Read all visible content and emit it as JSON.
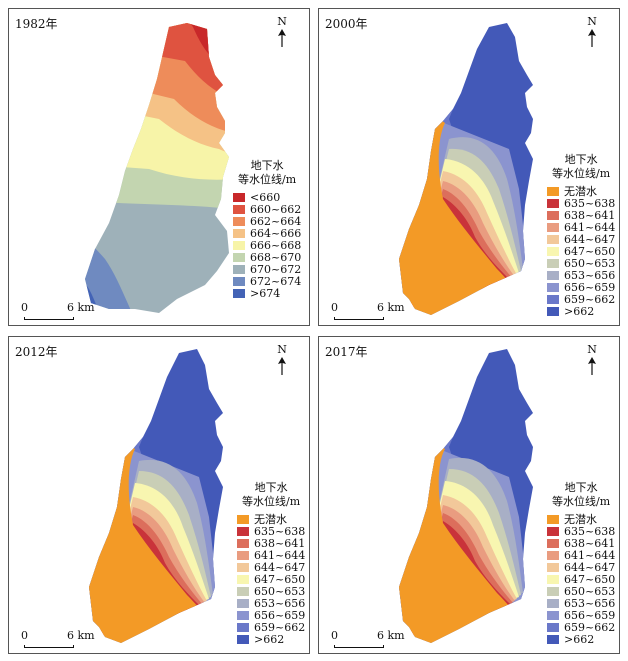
{
  "common": {
    "north_label": "N",
    "scale_zero": "0",
    "scale_dist": "6 km",
    "legend_title_1": "地下水",
    "legend_title_2": "等水位线/m"
  },
  "panels": [
    {
      "year": "1982年",
      "legend": [
        {
          "label": "<660",
          "color": "#c8282a"
        },
        {
          "label": "660~662",
          "color": "#df5340"
        },
        {
          "label": "662~664",
          "color": "#ee8c5a"
        },
        {
          "label": "664~666",
          "color": "#f5c286"
        },
        {
          "label": "666~668",
          "color": "#f7f4a8"
        },
        {
          "label": "668~670",
          "color": "#c3d5b0"
        },
        {
          "label": "670~672",
          "color": "#9eb1b9"
        },
        {
          "label": "672~674",
          "color": "#6f8ac0"
        },
        {
          "label": ">674",
          "color": "#4363b6"
        }
      ]
    },
    {
      "year": "2000年",
      "legend": [
        {
          "label": "无潜水",
          "color": "#f39a26"
        },
        {
          "label": "635~638",
          "color": "#c9333a"
        },
        {
          "label": "638~641",
          "color": "#dc6e5c"
        },
        {
          "label": "641~644",
          "color": "#e99c80"
        },
        {
          "label": "644~647",
          "color": "#f2c89a"
        },
        {
          "label": "647~650",
          "color": "#f8f6b0"
        },
        {
          "label": "650~653",
          "color": "#c9ceb6"
        },
        {
          "label": "653~656",
          "color": "#a8afc6"
        },
        {
          "label": "656~659",
          "color": "#8b94cf"
        },
        {
          "label": "659~662",
          "color": "#6a78c9"
        },
        {
          "label": ">662",
          "color": "#4359b8"
        }
      ]
    },
    {
      "year": "2012年",
      "legend": [
        {
          "label": "无潜水",
          "color": "#f39a26"
        },
        {
          "label": "635~638",
          "color": "#c9333a"
        },
        {
          "label": "638~641",
          "color": "#dc6e5c"
        },
        {
          "label": "641~644",
          "color": "#e99c80"
        },
        {
          "label": "644~647",
          "color": "#f2c89a"
        },
        {
          "label": "647~650",
          "color": "#f8f6b0"
        },
        {
          "label": "650~653",
          "color": "#c9ceb6"
        },
        {
          "label": "653~656",
          "color": "#a8afc6"
        },
        {
          "label": "656~659",
          "color": "#8b94cf"
        },
        {
          "label": "659~662",
          "color": "#6a78c9"
        },
        {
          "label": ">662",
          "color": "#4359b8"
        }
      ]
    },
    {
      "year": "2017年",
      "legend": [
        {
          "label": "无潜水",
          "color": "#f39a26"
        },
        {
          "label": "635~638",
          "color": "#c9333a"
        },
        {
          "label": "638~641",
          "color": "#dc6e5c"
        },
        {
          "label": "641~644",
          "color": "#e99c80"
        },
        {
          "label": "644~647",
          "color": "#f2c89a"
        },
        {
          "label": "647~650",
          "color": "#f8f6b0"
        },
        {
          "label": "650~653",
          "color": "#c9ceb6"
        },
        {
          "label": "653~656",
          "color": "#a8afc6"
        },
        {
          "label": "656~659",
          "color": "#8b94cf"
        },
        {
          "label": "659~662",
          "color": "#6a78c9"
        },
        {
          "label": ">662",
          "color": "#4359b8"
        }
      ]
    }
  ]
}
